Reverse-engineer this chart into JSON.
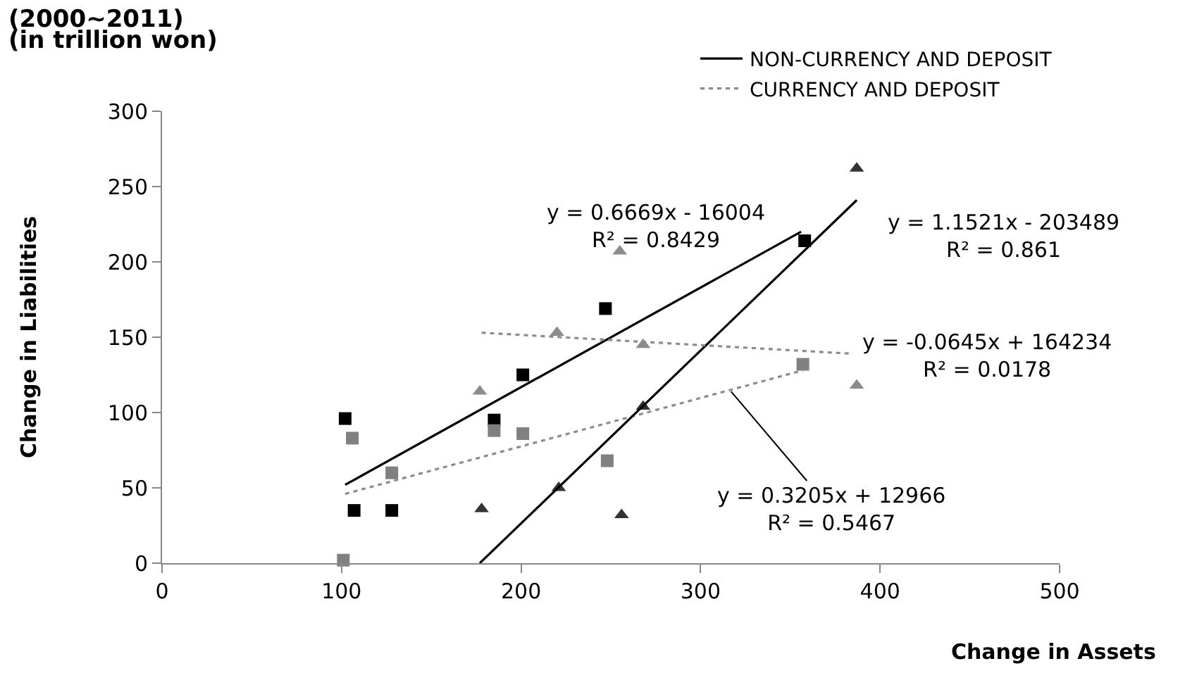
{
  "chart_data": {
    "type": "scatter",
    "title": "(2000~2011)",
    "subtitle": "(in trillion won)",
    "xlabel": "Change in Assets",
    "ylabel": "Change in Liabilities",
    "xlim": [
      0,
      500
    ],
    "xticks": [
      0,
      100,
      200,
      300,
      400,
      500
    ],
    "ylim": [
      0,
      300
    ],
    "yticks": [
      0,
      50,
      100,
      150,
      200,
      250,
      300
    ],
    "grid": false,
    "legend": "top right",
    "series": [
      {
        "marker": "square",
        "color": "#000000",
        "x": [
          102,
          107,
          128,
          185,
          201,
          247,
          358
        ],
        "values": [
          96,
          35,
          35,
          95,
          125,
          169,
          214
        ]
      },
      {
        "marker": "square",
        "color": "#808080",
        "x": [
          101,
          106,
          128,
          185,
          201,
          248,
          357
        ],
        "values": [
          2,
          83,
          60,
          88,
          86,
          68,
          132
        ]
      },
      {
        "marker": "triangle",
        "color": "#333333",
        "x": [
          178,
          221,
          256,
          268,
          387
        ],
        "values": [
          36,
          50,
          32,
          104,
          262
        ]
      },
      {
        "marker": "triangle",
        "color": "#8c8c8c",
        "x": [
          177,
          220,
          255,
          268,
          387
        ],
        "values": [
          114,
          153,
          207,
          145,
          118
        ]
      },
      {
        "type": "line",
        "name": "NON-CURRENCY AND DEPOSIT",
        "line_style": "solid",
        "color": "#000000",
        "x": [
          102,
          356
        ],
        "values": [
          52,
          220
        ]
      },
      {
        "type": "line",
        "name": "CURRENCY AND DEPOSIT",
        "line_style": "dotted",
        "color": "#8c8c8c",
        "x": [
          102,
          357
        ],
        "values": [
          46,
          128
        ]
      },
      {
        "type": "line",
        "line_style": "solid",
        "color": "#000000",
        "x": [
          177,
          387
        ],
        "values": [
          0,
          241
        ]
      },
      {
        "type": "line",
        "line_style": "dotted",
        "color": "#8c8c8c",
        "x": [
          178,
          385
        ],
        "values": [
          153,
          139
        ]
      }
    ],
    "annotations": [
      "y = 0.6669x - 16004\nR² = 0.8429",
      "y = 1.1521x - 203489\nR² = 0.861",
      "y = -0.0645x + 164234\nR² = 0.0178",
      {
        "text": "y = 0.3205x + 12966\nR² = 0.5467",
        "x": 317,
        "y": 114
      }
    ]
  }
}
